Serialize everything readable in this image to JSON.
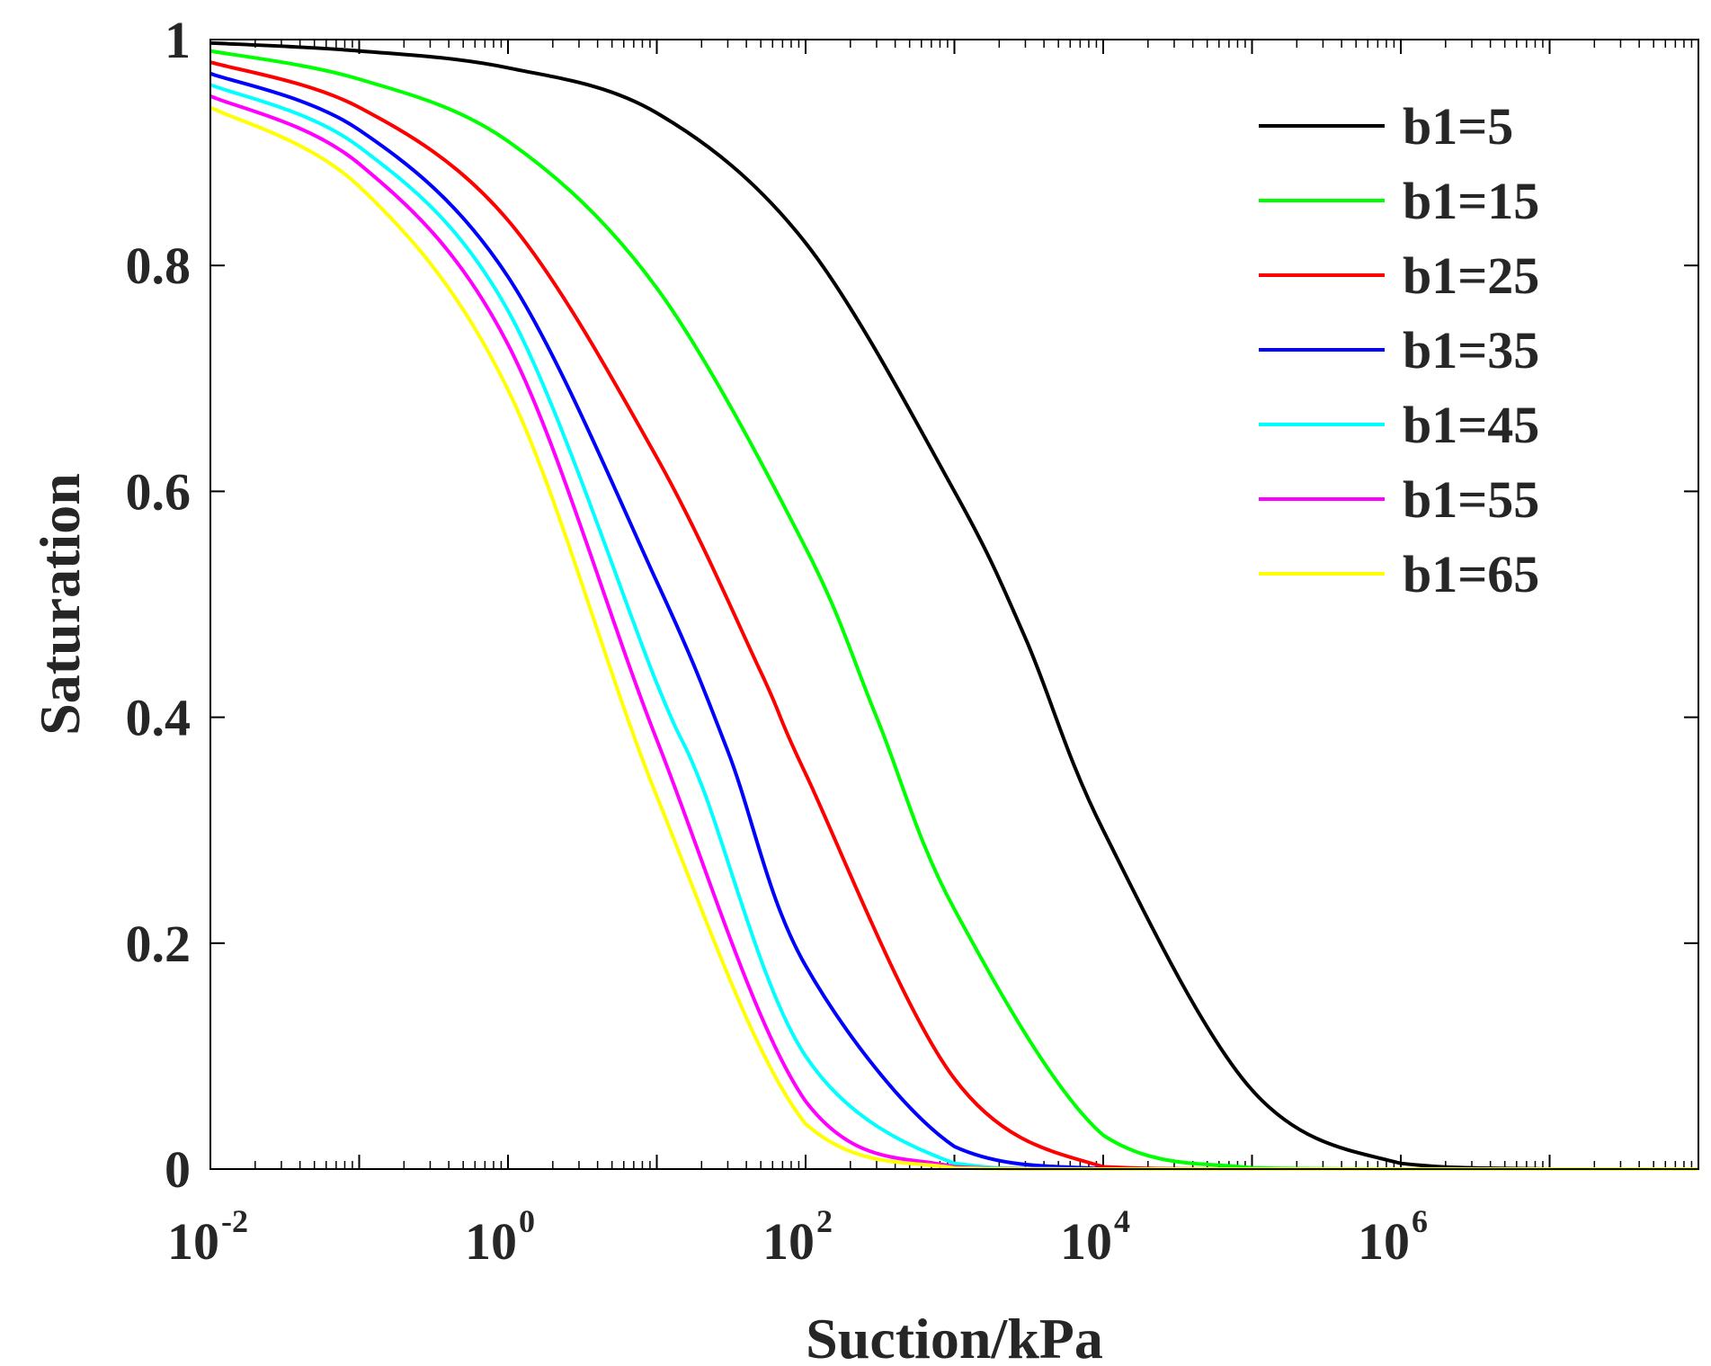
{
  "chart_data": {
    "type": "line",
    "title": "",
    "xlabel": "Suction/kPa",
    "ylabel": "Saturation",
    "xscale": "log",
    "xlim": [
      0.01,
      100000000
    ],
    "ylim": [
      0,
      1
    ],
    "x_ticks": [
      {
        "base": "10",
        "exp": "-2",
        "value": 0.01
      },
      {
        "base": "10",
        "exp": "0",
        "value": 1
      },
      {
        "base": "10",
        "exp": "2",
        "value": 100
      },
      {
        "base": "10",
        "exp": "4",
        "value": 10000
      },
      {
        "base": "10",
        "exp": "6",
        "value": 1000000
      }
    ],
    "y_ticks": [
      {
        "label": "0",
        "value": 0
      },
      {
        "label": "0.2",
        "value": 0.2
      },
      {
        "label": "0.4",
        "value": 0.4
      },
      {
        "label": "0.6",
        "value": 0.6
      },
      {
        "label": "0.8",
        "value": 0.8
      },
      {
        "label": "1",
        "value": 1
      }
    ],
    "grid": false,
    "legend_position": "top-right",
    "series": [
      {
        "name": "b1=5",
        "color": "#000000",
        "x": [
          0.01,
          0.1,
          1,
          10,
          100,
          1000,
          3000,
          10000,
          100000,
          1000000,
          10000000,
          100000000
        ],
        "y": [
          0.997,
          0.99,
          0.975,
          0.935,
          0.82,
          0.6,
          0.47,
          0.3,
          0.07,
          0.005,
          0.0,
          0.0
        ]
      },
      {
        "name": "b1=15",
        "color": "#00ff00",
        "x": [
          0.01,
          0.1,
          1,
          10,
          100,
          300,
          1000,
          10000,
          100000,
          1000000,
          100000000
        ],
        "y": [
          0.99,
          0.965,
          0.91,
          0.78,
          0.55,
          0.4,
          0.23,
          0.03,
          0.001,
          0.0,
          0.0
        ]
      },
      {
        "name": "b1=25",
        "color": "#ff0000",
        "x": [
          0.01,
          0.1,
          1,
          10,
          50,
          100,
          1000,
          10000,
          100000,
          100000000
        ],
        "y": [
          0.98,
          0.94,
          0.84,
          0.63,
          0.44,
          0.35,
          0.08,
          0.002,
          0.0,
          0.0
        ]
      },
      {
        "name": "b1=35",
        "color": "#0000ff",
        "x": [
          0.01,
          0.1,
          1,
          10,
          30,
          100,
          1000,
          10000,
          100000,
          100000000
        ],
        "y": [
          0.97,
          0.92,
          0.79,
          0.52,
          0.37,
          0.18,
          0.02,
          0.0,
          0.0,
          0.0
        ]
      },
      {
        "name": "b1=45",
        "color": "#00ffff",
        "x": [
          0.01,
          0.1,
          1,
          10,
          20,
          100,
          1000,
          10000,
          100000000
        ],
        "y": [
          0.96,
          0.905,
          0.76,
          0.43,
          0.34,
          0.1,
          0.005,
          0.0,
          0.0
        ]
      },
      {
        "name": "b1=55",
        "color": "#ff00ff",
        "x": [
          0.01,
          0.1,
          1,
          10,
          100,
          1000,
          10000,
          100000000
        ],
        "y": [
          0.95,
          0.89,
          0.73,
          0.38,
          0.06,
          0.002,
          0.0,
          0.0
        ]
      },
      {
        "name": "b1=65",
        "color": "#ffff00",
        "x": [
          0.01,
          0.1,
          1,
          10,
          100,
          1000,
          10000,
          100000000
        ],
        "y": [
          0.94,
          0.87,
          0.69,
          0.33,
          0.04,
          0.001,
          0.0,
          0.0
        ]
      }
    ]
  }
}
